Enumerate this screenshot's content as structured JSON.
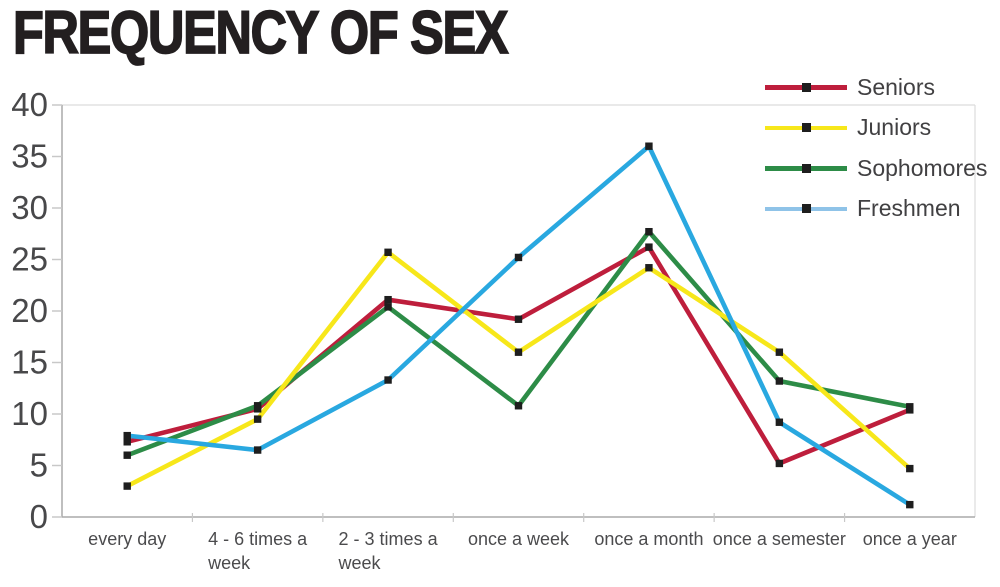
{
  "title": "FREQUENCY OF SEX",
  "chart_data": {
    "type": "line",
    "categories": [
      "every day",
      "4 - 6 times a week",
      "2 - 3 times a week",
      "once a week",
      "once a month",
      "once a semester",
      "once a year"
    ],
    "category_label_lines": [
      [
        "every day"
      ],
      [
        "4 - 6 times a",
        "week"
      ],
      [
        "2 - 3 times a",
        "week"
      ],
      [
        "once a week"
      ],
      [
        "once a month"
      ],
      [
        "once a semester"
      ],
      [
        "once a year"
      ]
    ],
    "series": [
      {
        "name": "Seniors",
        "color": "#be1e3c",
        "legend_color": "#be1e3c",
        "values": [
          7.3,
          10.5,
          21.1,
          19.2,
          26.2,
          5.2,
          10.4
        ]
      },
      {
        "name": "Juniors",
        "color": "#f7e71a",
        "legend_color": "#f7e71a",
        "values": [
          3.0,
          9.5,
          25.7,
          16.0,
          24.2,
          16.0,
          4.7
        ]
      },
      {
        "name": "Sophomores",
        "color": "#2d8c47",
        "legend_color": "#2d8c47",
        "values": [
          6.0,
          10.8,
          20.4,
          10.8,
          27.7,
          13.2,
          10.7
        ]
      },
      {
        "name": "Freshmen",
        "color": "#29a8e0",
        "legend_color": "#8fc3e8",
        "values": [
          7.9,
          6.5,
          13.3,
          25.2,
          36.0,
          9.2,
          1.2
        ]
      }
    ],
    "ylim": [
      0,
      40
    ],
    "yticks": [
      0,
      5,
      10,
      15,
      20,
      25,
      30,
      35,
      40
    ],
    "xlabel": "",
    "ylabel": "",
    "grid": false,
    "legend_position": "top-right",
    "marker": "black-square"
  },
  "colors": {
    "title_text": "#231f20",
    "axis_line": "#aaaaaa",
    "frame_light": "#dcdcdc",
    "tick": "#c8c8c8",
    "tick_label": "#48484a",
    "category_label": "#4b4b4d",
    "legend_text": "#414042",
    "marker": "#1e1e1e",
    "background": "#ffffff"
  }
}
